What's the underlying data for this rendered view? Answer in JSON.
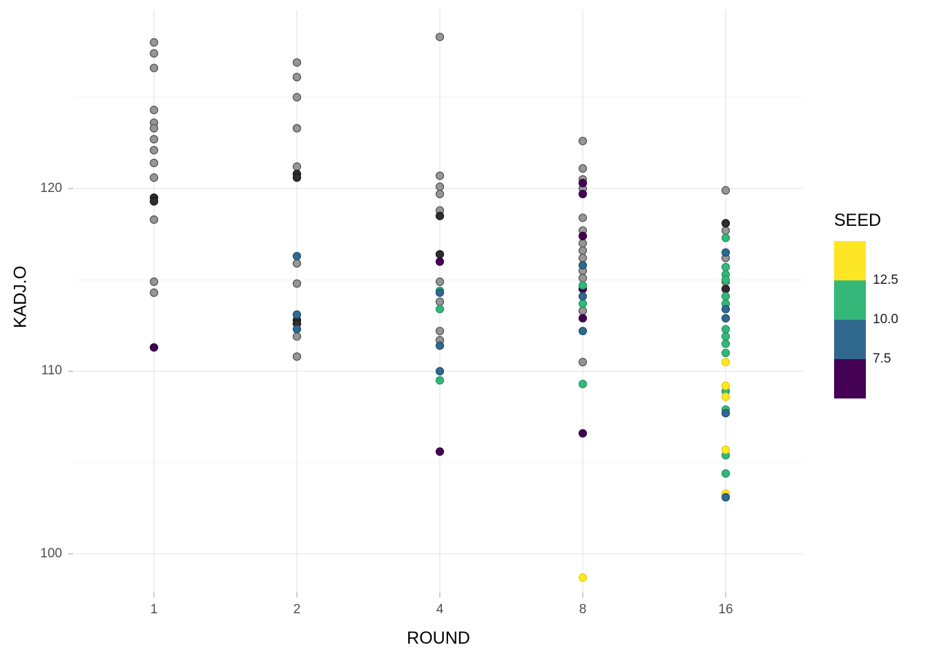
{
  "chart_data": {
    "type": "scatter",
    "title": "",
    "xlabel": "ROUND",
    "ylabel": "KADJ.O",
    "x_scale": "log2",
    "xaxis": {
      "label": "ROUND",
      "ticks": [
        1,
        2,
        4,
        8,
        16
      ]
    },
    "yaxis": {
      "label": "KADJ.O",
      "ticks": [
        100,
        110,
        120
      ],
      "minor_ticks": [
        105,
        115,
        125
      ],
      "ylim": [
        97.8,
        129.7
      ]
    },
    "grid": "horizontal major+minor and vertical major gridlines, light gray on white panel",
    "legend": {
      "title": "SEED",
      "position": "right",
      "type": "binned-colorbar",
      "break_labels": [
        "12.5",
        "10.0",
        "7.5"
      ],
      "colors": [
        "#FDE725",
        "#35B779",
        "#31688E",
        "#440154"
      ]
    },
    "point_style": {
      "radius": 5.5,
      "stroke_width": 1.2
    },
    "series": [
      {
        "name": "seed-na-gray",
        "color": "#969696",
        "stroke": "#4f4f4f",
        "points": [
          [
            1,
            128.0
          ],
          [
            1,
            127.4
          ],
          [
            1,
            126.6
          ],
          [
            1,
            124.3
          ],
          [
            1,
            123.6
          ],
          [
            1,
            123.3
          ],
          [
            1,
            122.7
          ],
          [
            1,
            122.1
          ],
          [
            1,
            121.4
          ],
          [
            1,
            120.6
          ],
          [
            1,
            118.3
          ],
          [
            1,
            114.9
          ],
          [
            1,
            114.3
          ],
          [
            2,
            126.9
          ],
          [
            2,
            126.1
          ],
          [
            2,
            125.0
          ],
          [
            2,
            123.3
          ],
          [
            2,
            121.2
          ],
          [
            2,
            115.9
          ],
          [
            2,
            114.8
          ],
          [
            2,
            111.9
          ],
          [
            2,
            110.8
          ],
          [
            4,
            128.3
          ],
          [
            4,
            120.7
          ],
          [
            4,
            120.1
          ],
          [
            4,
            119.7
          ],
          [
            4,
            118.8
          ],
          [
            4,
            114.9
          ],
          [
            4,
            113.8
          ],
          [
            4,
            112.2
          ],
          [
            4,
            111.7
          ],
          [
            8,
            122.6
          ],
          [
            8,
            121.1
          ],
          [
            8,
            120.5
          ],
          [
            8,
            120.0
          ],
          [
            8,
            118.4
          ],
          [
            8,
            117.7
          ],
          [
            8,
            117.0
          ],
          [
            8,
            116.6
          ],
          [
            8,
            116.2
          ],
          [
            8,
            115.5
          ],
          [
            8,
            115.1
          ],
          [
            8,
            113.3
          ],
          [
            8,
            110.5
          ],
          [
            16,
            119.9
          ],
          [
            16,
            117.7
          ],
          [
            16,
            116.2
          ],
          [
            16,
            114.9
          ]
        ]
      },
      {
        "name": "overplotted-dark",
        "color": "#2e2e2e",
        "stroke": "#161616",
        "points": [
          [
            1,
            119.5
          ],
          [
            1,
            119.3
          ],
          [
            2,
            120.8
          ],
          [
            2,
            120.6
          ],
          [
            2,
            112.8
          ],
          [
            2,
            112.6
          ],
          [
            4,
            118.5
          ],
          [
            4,
            116.4
          ],
          [
            16,
            118.1
          ],
          [
            16,
            114.5
          ]
        ]
      },
      {
        "name": "seed-below-7.5-purple",
        "color": "#440154",
        "stroke": "#30023f",
        "points": [
          [
            1,
            111.3
          ],
          [
            4,
            116.0
          ],
          [
            4,
            105.6
          ],
          [
            8,
            120.3
          ],
          [
            8,
            119.7
          ],
          [
            8,
            117.4
          ],
          [
            8,
            114.5
          ],
          [
            8,
            112.9
          ],
          [
            8,
            106.6
          ]
        ]
      },
      {
        "name": "seed-10-to-12.5-green",
        "color": "#35B779",
        "stroke": "#23935e",
        "points": [
          [
            4,
            114.4
          ],
          [
            4,
            113.4
          ],
          [
            4,
            109.5
          ],
          [
            8,
            114.7
          ],
          [
            8,
            113.7
          ],
          [
            8,
            109.3
          ],
          [
            16,
            117.3
          ],
          [
            16,
            115.7
          ],
          [
            16,
            115.3
          ],
          [
            16,
            115.0
          ],
          [
            16,
            114.1
          ],
          [
            16,
            113.7
          ],
          [
            16,
            112.3
          ],
          [
            16,
            111.9
          ],
          [
            16,
            111.5
          ],
          [
            16,
            111.0
          ],
          [
            16,
            108.9
          ],
          [
            16,
            107.9
          ],
          [
            16,
            105.4
          ],
          [
            16,
            104.4
          ]
        ]
      },
      {
        "name": "seed-above-12.5-yellow",
        "color": "#FDE725",
        "stroke": "#e3cc0e",
        "points": [
          [
            8,
            98.7
          ],
          [
            16,
            110.5
          ],
          [
            16,
            109.2
          ],
          [
            16,
            108.6
          ],
          [
            16,
            105.7
          ],
          [
            16,
            103.3
          ]
        ]
      },
      {
        "name": "seed-7.5-to-10-blue",
        "color": "#31688E",
        "stroke": "#204f71",
        "points": [
          [
            2,
            116.3
          ],
          [
            2,
            113.1
          ],
          [
            2,
            112.3
          ],
          [
            4,
            114.3
          ],
          [
            4,
            111.4
          ],
          [
            4,
            110.0
          ],
          [
            8,
            115.8
          ],
          [
            8,
            114.1
          ],
          [
            8,
            112.2
          ],
          [
            16,
            116.5
          ],
          [
            16,
            113.4
          ],
          [
            16,
            112.9
          ],
          [
            16,
            107.7
          ],
          [
            16,
            103.1
          ]
        ]
      }
    ]
  }
}
